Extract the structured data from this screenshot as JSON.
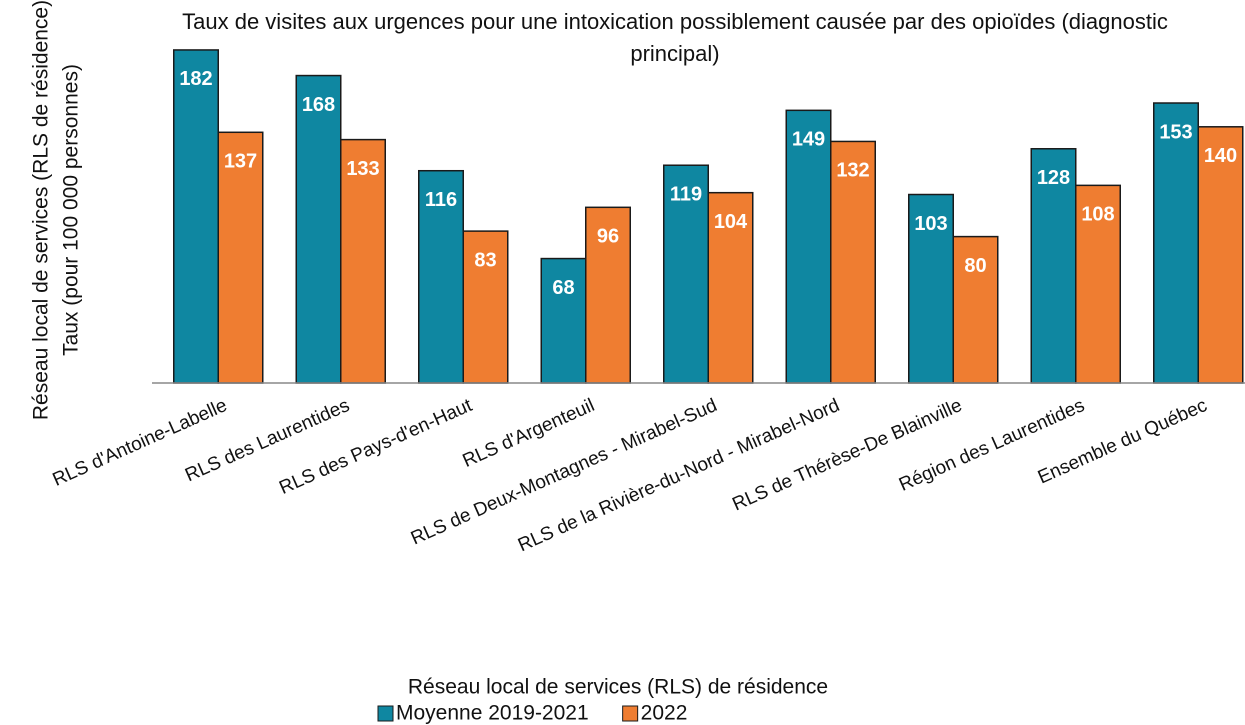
{
  "chart_data": {
    "type": "bar",
    "title": "Taux de visites aux urgences pour une intoxication possiblement causée par des opioïdes (diagnostic principal)",
    "x_label": "Réseau local de services (RLS) de résidence",
    "y_label": [
      "Réseau local de services (RLS de résidence)",
      "Taux (pour 100 000 personnes)"
    ],
    "categories": [
      "RLS d'Antoine-Labelle",
      "RLS des Laurentides",
      "RLS des Pays-d'en-Haut",
      "RLS d'Argenteuil",
      "RLS de Deux-Montagnes - Mirabel-Sud",
      "RLS de la Rivière-du-Nord - Mirabel-Nord",
      "RLS de Thérèse-De Blainville",
      "Région des Laurentides",
      "Ensemble du Québec"
    ],
    "series": [
      {
        "name": "Moyenne 2019-2021",
        "color": "#0f87a1",
        "values": [
          182,
          168,
          116,
          68,
          119,
          149,
          103,
          128,
          153
        ]
      },
      {
        "name": "2022",
        "color": "#ef7d31",
        "values": [
          137,
          133,
          83,
          96,
          104,
          132,
          80,
          108,
          140
        ]
      }
    ],
    "ylim": [
      0,
      200
    ],
    "legend": "bottom"
  }
}
